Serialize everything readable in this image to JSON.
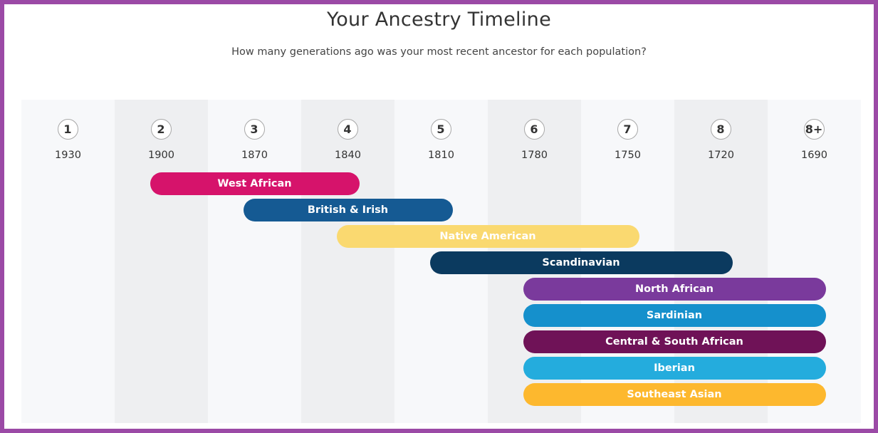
{
  "page": {
    "title": "Your Ancestry Timeline",
    "subtitle": "How many generations ago was your most recent ancestor for each population?"
  },
  "colors": {
    "frame": "#9b4aa6",
    "column_light": "#f7f8fa",
    "column_dark": "#eeeff1"
  },
  "chart_data": {
    "type": "bar",
    "orientation": "horizontal-range",
    "title": "Your Ancestry Timeline",
    "subtitle": "How many generations ago was your most recent ancestor for each population?",
    "generations": [
      "1",
      "2",
      "3",
      "4",
      "5",
      "6",
      "7",
      "8",
      "8+"
    ],
    "years": [
      "1930",
      "1900",
      "1870",
      "1840",
      "1810",
      "1780",
      "1750",
      "1720",
      "1690"
    ],
    "series": [
      {
        "name": "West African",
        "start_year": 1900,
        "end_year": 1840,
        "color": "#d6136b",
        "text_color": "#ffffff"
      },
      {
        "name": "British & Irish",
        "start_year": 1870,
        "end_year": 1810,
        "color": "#155a93",
        "text_color": "#ffffff"
      },
      {
        "name": "Native American",
        "start_year": 1840,
        "end_year": 1750,
        "color": "#fad970",
        "text_color": "#ffffff"
      },
      {
        "name": "Scandinavian",
        "start_year": 1810,
        "end_year": 1720,
        "color": "#0b3a5f",
        "text_color": "#ffffff"
      },
      {
        "name": "North African",
        "start_year": 1780,
        "end_year": 1690,
        "color": "#7a3a9c",
        "text_color": "#ffffff"
      },
      {
        "name": "Sardinian",
        "start_year": 1780,
        "end_year": 1690,
        "color": "#1590cc",
        "text_color": "#ffffff"
      },
      {
        "name": "Central & South African",
        "start_year": 1780,
        "end_year": 1690,
        "color": "#6f1257",
        "text_color": "#ffffff"
      },
      {
        "name": "Iberian",
        "start_year": 1780,
        "end_year": 1690,
        "color": "#24acdd",
        "text_color": "#ffffff"
      },
      {
        "name": "Southeast Asian",
        "start_year": 1780,
        "end_year": 1690,
        "color": "#fdb82e",
        "text_color": "#ffffff"
      }
    ]
  }
}
